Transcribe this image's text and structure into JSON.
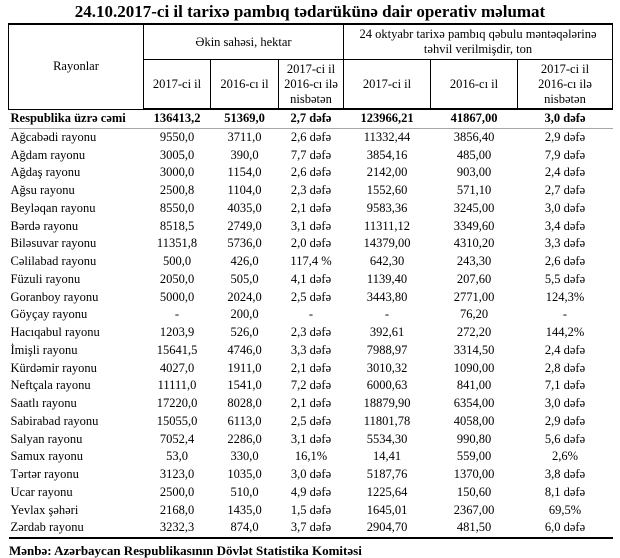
{
  "title": "24.10.2017-ci il tarixə pambıq tədarükünə dair operativ məlumat",
  "source": "Mənbə: Azərbaycan Respublikasının Dövlət Statistika Komitəsi",
  "table": {
    "corner_header": "Rayonlar",
    "group_headers": {
      "sown_area": "Əkin sahəsi, hektar",
      "delivered": "24 oktyabr tarixə pambıq qəbulu məntəqələrinə təhvil verilmişdir, ton"
    },
    "sub_headers": [
      "2017-ci il",
      "2016-cı il",
      "2017-ci il\n2016-cı ilə\nnisbətən",
      "2017-ci il",
      "2016-cı il",
      "2017-ci il\n2016-cı ilə\nnisbətən"
    ],
    "rows": [
      {
        "name": "Respublika üzrə cəmi",
        "bold": true,
        "values": [
          "136413,2",
          "51369,0",
          "2,7 dəfə",
          "123966,21",
          "41867,00",
          "3,0 dəfə"
        ]
      },
      {
        "name": "Ağcabədi rayonu",
        "values": [
          "9550,0",
          "3711,0",
          "2,6 dəfə",
          "11332,44",
          "3856,40",
          "2,9 dəfə"
        ]
      },
      {
        "name": "Ağdam rayonu",
        "values": [
          "3005,0",
          "390,0",
          "7,7 dəfə",
          "3854,16",
          "485,00",
          "7,9 dəfə"
        ]
      },
      {
        "name": "Ağdaş rayonu",
        "values": [
          "3000,0",
          "1154,0",
          "2,6 dəfə",
          "2142,00",
          "903,00",
          "2,4 dəfə"
        ]
      },
      {
        "name": "Ağsu rayonu",
        "values": [
          "2500,8",
          "1104,0",
          "2,3 dəfə",
          "1552,60",
          "571,10",
          "2,7 dəfə"
        ]
      },
      {
        "name": "Beyləqan rayonu",
        "values": [
          "8550,0",
          "4035,0",
          "2,1 dəfə",
          "9583,36",
          "3245,00",
          "3,0 dəfə"
        ]
      },
      {
        "name": "Bərdə rayonu",
        "values": [
          "8518,5",
          "2749,0",
          "3,1 dəfə",
          "11311,12",
          "3349,60",
          "3,4 dəfə"
        ]
      },
      {
        "name": "Biləsuvar rayonu",
        "values": [
          "11351,8",
          "5736,0",
          "2,0 dəfə",
          "14379,00",
          "4310,20",
          "3,3 dəfə"
        ]
      },
      {
        "name": "Cəlilabad rayonu",
        "values": [
          "500,0",
          "426,0",
          "117,4 %",
          "642,30",
          "243,30",
          "2,6 dəfə"
        ]
      },
      {
        "name": "Füzuli rayonu",
        "values": [
          "2050,0",
          "505,0",
          "4,1 dəfə",
          "1139,40",
          "207,60",
          "5,5 dəfə"
        ]
      },
      {
        "name": "Goranboy rayonu",
        "values": [
          "5000,0",
          "2024,0",
          "2,5 dəfə",
          "3443,80",
          "2771,00",
          "124,3%"
        ]
      },
      {
        "name": "Göyçay rayonu",
        "values": [
          "-",
          "200,0",
          "-",
          "-",
          "76,20",
          "-"
        ]
      },
      {
        "name": "Hacıqabul rayonu",
        "values": [
          "1203,9",
          "526,0",
          "2,3 dəfə",
          "392,61",
          "272,20",
          "144,2%"
        ]
      },
      {
        "name": "İmişli rayonu",
        "values": [
          "15641,5",
          "4746,0",
          "3,3 dəfə",
          "7988,97",
          "3314,50",
          "2,4 dəfə"
        ]
      },
      {
        "name": "Kürdəmir rayonu",
        "values": [
          "4027,0",
          "1911,0",
          "2,1 dəfə",
          "3010,32",
          "1090,00",
          "2,8 dəfə"
        ]
      },
      {
        "name": "Neftçala rayonu",
        "values": [
          "11111,0",
          "1541,0",
          "7,2 dəfə",
          "6000,63",
          "841,00",
          "7,1 dəfə"
        ]
      },
      {
        "name": "Saatlı rayonu",
        "values": [
          "17220,0",
          "8028,0",
          "2,1 dəfə",
          "18879,90",
          "6354,00",
          "3,0 dəfə"
        ]
      },
      {
        "name": "Sabirabad rayonu",
        "values": [
          "15055,0",
          "6113,0",
          "2,5 dəfə",
          "11801,78",
          "4058,00",
          "2,9 dəfə"
        ]
      },
      {
        "name": "Salyan rayonu",
        "values": [
          "7052,4",
          "2286,0",
          "3,1 dəfə",
          "5534,30",
          "990,80",
          "5,6 dəfə"
        ]
      },
      {
        "name": "Samux rayonu",
        "values": [
          "53,0",
          "330,0",
          "16,1%",
          "14,41",
          "559,00",
          "2,6%"
        ]
      },
      {
        "name": "Tərtər rayonu",
        "values": [
          "3123,0",
          "1035,0",
          "3,0 dəfə",
          "5187,76",
          "1370,00",
          "3,8 dəfə"
        ]
      },
      {
        "name": "Ucar rayonu",
        "values": [
          "2500,0",
          "510,0",
          "4,9 dəfə",
          "1225,64",
          "150,60",
          "8,1 dəfə"
        ]
      },
      {
        "name": "Yevlax şəhəri",
        "values": [
          "2168,0",
          "1435,0",
          "1,5 dəfə",
          "1645,01",
          "2367,00",
          "69,5%"
        ]
      },
      {
        "name": "Zərdab rayonu",
        "values": [
          "3232,3",
          "874,0",
          "3,7 dəfə",
          "2904,70",
          "481,50",
          "6,0 dəfə"
        ]
      }
    ]
  }
}
